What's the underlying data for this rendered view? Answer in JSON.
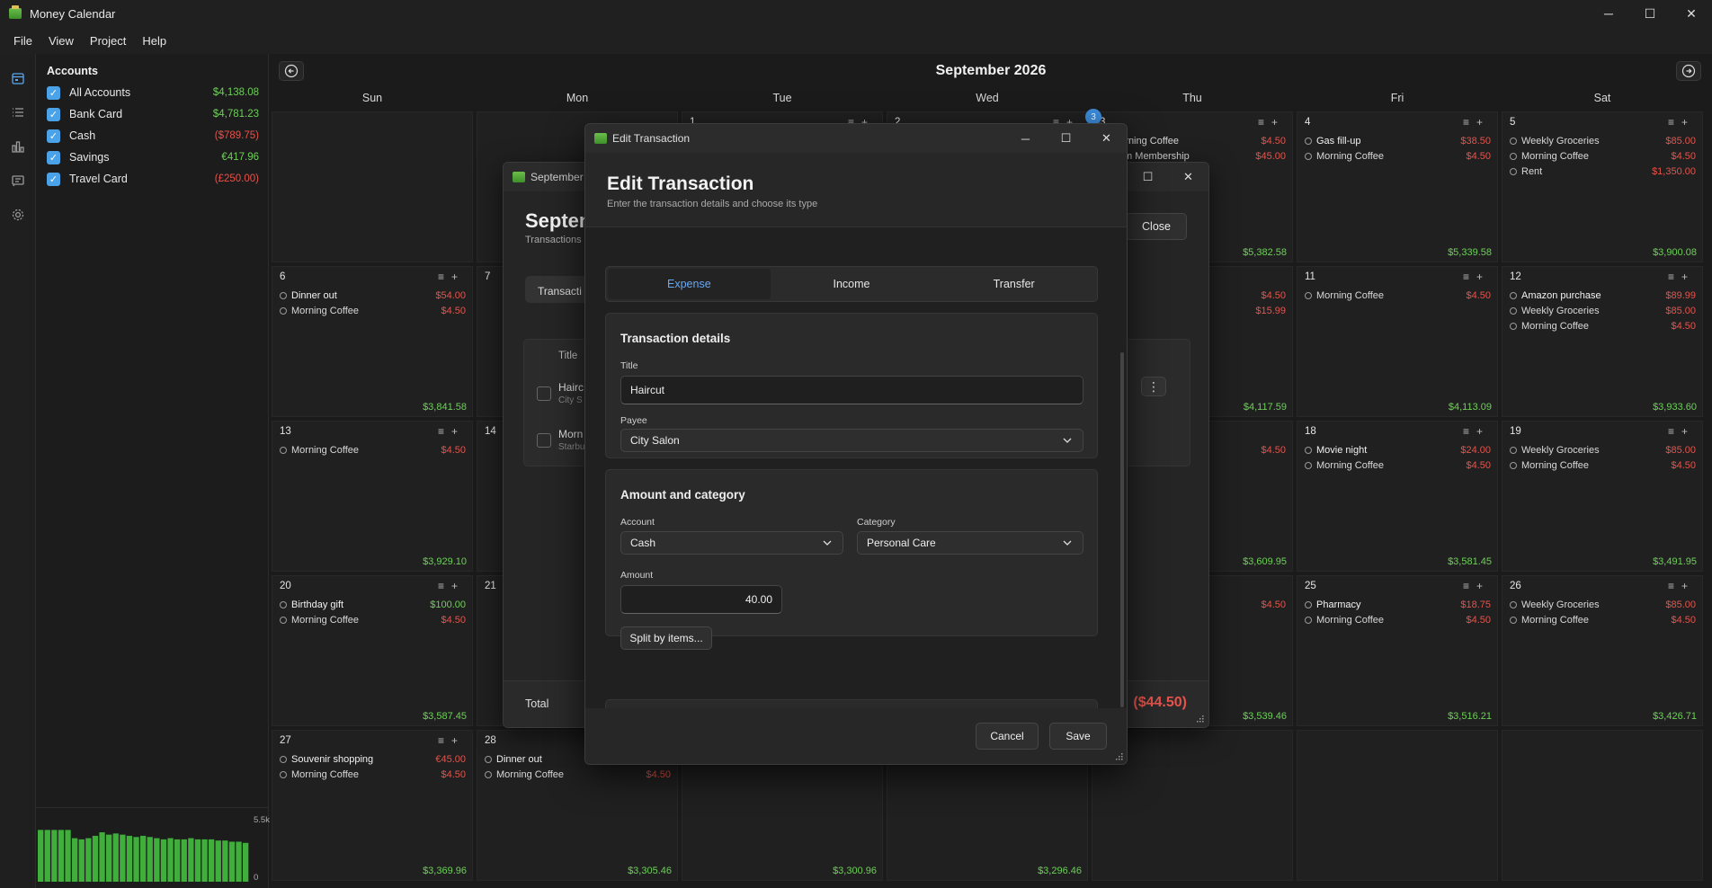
{
  "app": {
    "title": "Money Calendar"
  },
  "menu": [
    "File",
    "View",
    "Project",
    "Help"
  ],
  "rail": [
    "calendar-icon",
    "list-icon",
    "chart-icon",
    "report-icon",
    "settings-icon"
  ],
  "accounts": {
    "heading": "Accounts",
    "items": [
      {
        "name": "All Accounts",
        "balance": "$4,138.08",
        "status": "pos"
      },
      {
        "name": "Bank Card",
        "balance": "$4,781.23",
        "status": "pos"
      },
      {
        "name": "Cash",
        "balance": "($789.75)",
        "status": "neg"
      },
      {
        "name": "Savings",
        "balance": "€417.96",
        "status": "pos"
      },
      {
        "name": "Travel Card",
        "balance": "(£250.00)",
        "status": "neg"
      }
    ],
    "mini_chart": {
      "top_label": "5.5k",
      "bottom_label": "0",
      "values": [
        4.4,
        4.4,
        4.4,
        4.4,
        4.4,
        3.7,
        3.6,
        3.7,
        3.9,
        4.2,
        4.0,
        4.1,
        4.0,
        3.9,
        3.8,
        3.9,
        3.8,
        3.7,
        3.6,
        3.7,
        3.6,
        3.6,
        3.7,
        3.6,
        3.6,
        3.6,
        3.5,
        3.5,
        3.4,
        3.4,
        3.3
      ]
    }
  },
  "calendar": {
    "month": "September 2026",
    "weekdays": [
      "Sun",
      "Mon",
      "Tue",
      "Wed",
      "Thu",
      "Fri",
      "Sat"
    ],
    "weeks": [
      [
        {
          "day": "",
          "entries": [],
          "total": ""
        },
        {
          "day": "",
          "entries": [],
          "total": ""
        },
        {
          "day": "1",
          "entries": [],
          "total": ""
        },
        {
          "day": "2",
          "entries": [],
          "total": ""
        },
        {
          "day": "3",
          "today": true,
          "entries": [
            {
              "t": "Morning Coffee",
              "a": "$4.50"
            },
            {
              "t": "Gym Membership",
              "a": "$45.00"
            }
          ],
          "total": "$5,382.58"
        },
        {
          "day": "4",
          "entries": [
            {
              "t": "Gas fill-up",
              "a": "$38.50",
              "b": true
            },
            {
              "t": "Morning Coffee",
              "a": "$4.50"
            }
          ],
          "total": "$5,339.58"
        },
        {
          "day": "5",
          "entries": [
            {
              "t": "Weekly Groceries",
              "a": "$85.00"
            },
            {
              "t": "Morning Coffee",
              "a": "$4.50"
            },
            {
              "t": "Rent",
              "a": "$1,350.00"
            }
          ],
          "total": "$3,900.08"
        }
      ],
      [
        {
          "day": "6",
          "entries": [
            {
              "t": "Dinner out",
              "a": "$54.00",
              "b": true
            },
            {
              "t": "Morning Coffee",
              "a": "$4.50"
            }
          ],
          "total": "$3,841.58"
        },
        {
          "day": "7",
          "entries": [],
          "total": ""
        },
        {
          "day": "",
          "entries": [],
          "total": ""
        },
        {
          "day": "",
          "entries": [],
          "total": ""
        },
        {
          "day": "",
          "entries": [
            {
              "t": "",
              "a": "$4.50"
            },
            {
              "t": "",
              "a": "$15.99"
            }
          ],
          "total": "$4,117.59"
        },
        {
          "day": "11",
          "entries": [
            {
              "t": "Morning Coffee",
              "a": "$4.50"
            }
          ],
          "total": "$4,113.09"
        },
        {
          "day": "12",
          "entries": [
            {
              "t": "Amazon purchase",
              "a": "$89.99",
              "b": true
            },
            {
              "t": "Weekly Groceries",
              "a": "$85.00"
            },
            {
              "t": "Morning Coffee",
              "a": "$4.50"
            }
          ],
          "total": "$3,933.60"
        }
      ],
      [
        {
          "day": "13",
          "entries": [
            {
              "t": "Morning Coffee",
              "a": "$4.50"
            }
          ],
          "total": "$3,929.10"
        },
        {
          "day": "14",
          "entries": [],
          "total": ""
        },
        {
          "day": "",
          "entries": [],
          "total": ""
        },
        {
          "day": "",
          "entries": [],
          "total": ""
        },
        {
          "day": "",
          "entries": [
            {
              "t": "",
              "a": "$4.50"
            }
          ],
          "total": "$3,609.95"
        },
        {
          "day": "18",
          "entries": [
            {
              "t": "Movie night",
              "a": "$24.00",
              "b": true
            },
            {
              "t": "Morning Coffee",
              "a": "$4.50"
            }
          ],
          "total": "$3,581.45"
        },
        {
          "day": "19",
          "entries": [
            {
              "t": "Weekly Groceries",
              "a": "$85.00"
            },
            {
              "t": "Morning Coffee",
              "a": "$4.50"
            }
          ],
          "total": "$3,491.95"
        }
      ],
      [
        {
          "day": "20",
          "entries": [
            {
              "t": "Birthday gift",
              "a": "$100.00",
              "b": true,
              "pos": true
            },
            {
              "t": "Morning Coffee",
              "a": "$4.50"
            }
          ],
          "total": "$3,587.45"
        },
        {
          "day": "21",
          "entries": [],
          "total": ""
        },
        {
          "day": "",
          "entries": [],
          "total": ""
        },
        {
          "day": "",
          "entries": [],
          "total": ""
        },
        {
          "day": "",
          "entries": [
            {
              "t": "",
              "a": "$4.50"
            }
          ],
          "total": "$3,539.46"
        },
        {
          "day": "25",
          "entries": [
            {
              "t": "Pharmacy",
              "a": "$18.75",
              "b": true
            },
            {
              "t": "Morning Coffee",
              "a": "$4.50"
            }
          ],
          "total": "$3,516.21"
        },
        {
          "day": "26",
          "entries": [
            {
              "t": "Weekly Groceries",
              "a": "$85.00"
            },
            {
              "t": "Morning Coffee",
              "a": "$4.50"
            }
          ],
          "total": "$3,426.71"
        }
      ],
      [
        {
          "day": "27",
          "entries": [
            {
              "t": "Souvenir shopping",
              "a": "€45.00",
              "b": true
            },
            {
              "t": "Morning Coffee",
              "a": "$4.50"
            }
          ],
          "total": "$3,369.96"
        },
        {
          "day": "28",
          "entries": [
            {
              "t": "Dinner out",
              "a": "",
              "b": true
            },
            {
              "t": "Morning Coffee",
              "a": "$4.50"
            }
          ],
          "total": "$3,305.46"
        },
        {
          "day": "",
          "entries": [],
          "total": "$3,300.96"
        },
        {
          "day": "",
          "entries": [],
          "total": "$3,296.46"
        },
        {
          "day": "",
          "entries": [],
          "total": ""
        },
        {
          "day": "",
          "entries": [],
          "total": ""
        },
        {
          "day": "",
          "entries": [],
          "total": ""
        }
      ]
    ]
  },
  "bg_dialog": {
    "window_title": "September",
    "title": "Septem",
    "subtitle": "Transactions a",
    "close_label": "Close",
    "tab_label": "Transacti",
    "col_title": "Title",
    "rows": [
      {
        "title": "Hairc",
        "sub": "City S"
      },
      {
        "title": "Morn",
        "sub": "Starbu"
      }
    ],
    "total_label": "Total",
    "total_amount": "($44.50)"
  },
  "modal": {
    "window_title": "Edit Transaction",
    "title": "Edit Transaction",
    "subtitle": "Enter the transaction details and choose its type",
    "tabs": [
      "Expense",
      "Income",
      "Transfer"
    ],
    "active_tab": 0,
    "details": {
      "heading": "Transaction details",
      "title_label": "Title",
      "title_value": "Haircut",
      "payee_label": "Payee",
      "payee_value": "City Salon"
    },
    "amount": {
      "heading": "Amount and category",
      "account_label": "Account",
      "account_value": "Cash",
      "category_label": "Category",
      "category_value": "Personal Care",
      "amount_label": "Amount",
      "amount_value": "40.00",
      "split_label": "Split by items..."
    },
    "cancel_label": "Cancel",
    "save_label": "Save"
  },
  "colors": {
    "accent": "#4aa3e8",
    "positive": "#6fcf5a",
    "negative": "#e5534b"
  }
}
